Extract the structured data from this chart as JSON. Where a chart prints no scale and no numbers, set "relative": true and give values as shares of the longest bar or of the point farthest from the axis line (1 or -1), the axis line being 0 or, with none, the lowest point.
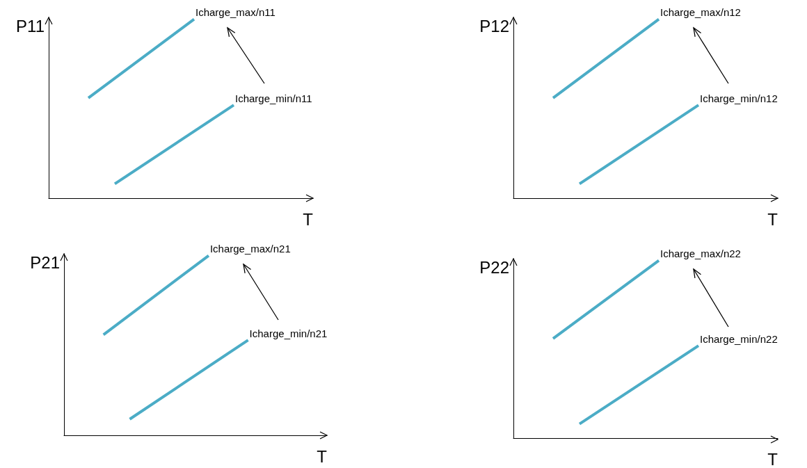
{
  "chart_data": [
    {
      "type": "line",
      "relative": true,
      "xlabel": "T",
      "ylabel": "P11",
      "categories": [
        null,
        null,
        null,
        null,
        null,
        null,
        null,
        null,
        null,
        null,
        null,
        null,
        null,
        null,
        null,
        null,
        null,
        null,
        null,
        null,
        null
      ],
      "series": [
        {
          "name": "Icharge_max/n11",
          "color": "#4bacc6",
          "values": [
            null,
            null,
            null,
            0.56,
            null,
            null,
            null,
            null,
            null,
            null,
            null,
            1,
            null,
            null,
            null,
            null,
            null,
            null,
            null,
            null,
            null
          ]
        },
        {
          "name": "Icharge_min/n11",
          "color": "#4bacc6",
          "values": [
            null,
            null,
            null,
            null,
            null,
            0.08,
            null,
            null,
            null,
            null,
            null,
            null,
            null,
            null,
            0.52,
            null,
            null,
            null,
            null,
            null,
            null
          ]
        }
      ]
    },
    {
      "type": "line",
      "relative": true,
      "xlabel": "T",
      "ylabel": "P12",
      "categories": [
        null,
        null,
        null,
        null,
        null,
        null,
        null,
        null,
        null,
        null,
        null,
        null,
        null,
        null,
        null,
        null,
        null,
        null,
        null,
        null,
        null
      ],
      "series": [
        {
          "name": "Icharge_max/n12",
          "color": "#4bacc6",
          "values": [
            null,
            null,
            null,
            0.56,
            null,
            null,
            null,
            null,
            null,
            null,
            null,
            1,
            null,
            null,
            null,
            null,
            null,
            null,
            null,
            null,
            null
          ]
        },
        {
          "name": "Icharge_min/n12",
          "color": "#4bacc6",
          "values": [
            null,
            null,
            null,
            null,
            null,
            0.08,
            null,
            null,
            null,
            null,
            null,
            null,
            null,
            null,
            0.52,
            null,
            null,
            null,
            null,
            null,
            null
          ]
        }
      ]
    },
    {
      "type": "line",
      "relative": true,
      "xlabel": "T",
      "ylabel": "P21",
      "categories": [
        null,
        null,
        null,
        null,
        null,
        null,
        null,
        null,
        null,
        null,
        null,
        null,
        null,
        null,
        null,
        null,
        null,
        null,
        null,
        null,
        null
      ],
      "series": [
        {
          "name": "Icharge_max/n21",
          "color": "#4bacc6",
          "values": [
            null,
            null,
            null,
            0.56,
            null,
            null,
            null,
            null,
            null,
            null,
            null,
            1,
            null,
            null,
            null,
            null,
            null,
            null,
            null,
            null,
            null
          ]
        },
        {
          "name": "Icharge_min/n21",
          "color": "#4bacc6",
          "values": [
            null,
            null,
            null,
            null,
            null,
            0.09,
            null,
            null,
            null,
            null,
            null,
            null,
            null,
            null,
            0.53,
            null,
            null,
            null,
            null,
            null,
            null
          ]
        }
      ]
    },
    {
      "type": "line",
      "relative": true,
      "xlabel": "T",
      "ylabel": "P22",
      "categories": [
        null,
        null,
        null,
        null,
        null,
        null,
        null,
        null,
        null,
        null,
        null,
        null,
        null,
        null,
        null,
        null,
        null,
        null,
        null,
        null,
        null
      ],
      "series": [
        {
          "name": "Icharge_max/n22",
          "color": "#4bacc6",
          "values": [
            null,
            null,
            null,
            0.56,
            null,
            null,
            null,
            null,
            null,
            null,
            null,
            1,
            null,
            null,
            null,
            null,
            null,
            null,
            null,
            null,
            null
          ]
        },
        {
          "name": "Icharge_min/n22",
          "color": "#4bacc6",
          "values": [
            null,
            null,
            null,
            null,
            null,
            0.08,
            null,
            null,
            null,
            null,
            null,
            null,
            null,
            null,
            0.52,
            null,
            null,
            null,
            null,
            null,
            null
          ]
        }
      ]
    }
  ]
}
